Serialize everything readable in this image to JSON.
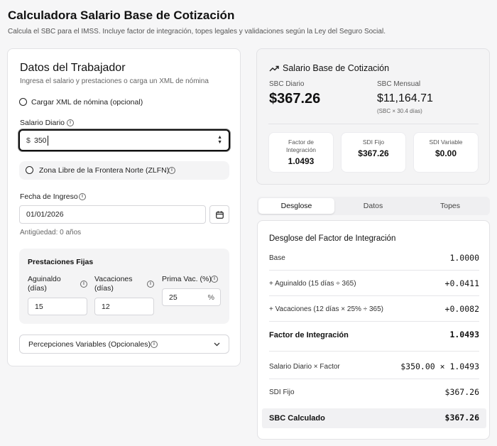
{
  "header": {
    "title": "Calculadora Salario Base de Cotización",
    "subtitle": "Calcula el SBC para el IMSS. Incluye factor de integración, topes legales y validaciones según la Ley del Seguro Social."
  },
  "worker": {
    "heading": "Datos del Trabajador",
    "hint": "Ingresa el salario y prestaciones o carga un XML de nómina",
    "xml_option": "Cargar XML de nómina (opcional)",
    "daily_salary_label": "Salario Diario",
    "currency_symbol": "$",
    "daily_salary_value": "350",
    "zlfn_label": "Zona Libre de la Frontera Norte (ZLFN)",
    "hire_date_label": "Fecha de Ingreso",
    "hire_date_value": "01/01/2026",
    "seniority": "Antigüedad: 0 años",
    "benefits": {
      "heading": "Prestaciones Fijas",
      "aguinaldo_label": "Aguinaldo (días)",
      "aguinaldo_value": "15",
      "vacaciones_label": "Vacaciones (días)",
      "vacaciones_value": "12",
      "prima_label": "Prima Vac. (%)",
      "prima_value": "25",
      "percent_symbol": "%"
    },
    "variables_label": "Percepciones Variables (Opcionales)"
  },
  "sbc": {
    "heading": "Salario Base de Cotización",
    "daily_label": "SBC Diario",
    "daily_value": "$367.26",
    "monthly_label": "SBC Mensual",
    "monthly_value": "$11,164.71",
    "monthly_note": "(SBC × 30.4 días)",
    "factor_label": "Factor de Integración",
    "factor_value": "1.0493",
    "sdi_fixed_label": "SDI Fijo",
    "sdi_fixed_value": "$367.26",
    "sdi_var_label": "SDI Variable",
    "sdi_var_value": "$0.00"
  },
  "tabs": [
    {
      "label": "Desglose",
      "active": true
    },
    {
      "label": "Datos",
      "active": false
    },
    {
      "label": "Topes",
      "active": false
    }
  ],
  "breakdown": {
    "heading": "Desglose del Factor de Integración",
    "rows": [
      {
        "label": "Base",
        "value": "1.0000"
      },
      {
        "label": "+ Aguinaldo (15 días ÷ 365)",
        "value": "+0.0411"
      },
      {
        "label": "+ Vacaciones (12 días × 25% ÷ 365)",
        "value": "+0.0082"
      },
      {
        "label": "Factor de Integración",
        "value": "1.0493"
      },
      {
        "label": "Salario Diario × Factor",
        "value": "$350.00 × 1.0493"
      },
      {
        "label": "SDI Fijo",
        "value": "$367.26"
      },
      {
        "label": "SBC Calculado",
        "value": "$367.26"
      }
    ]
  }
}
